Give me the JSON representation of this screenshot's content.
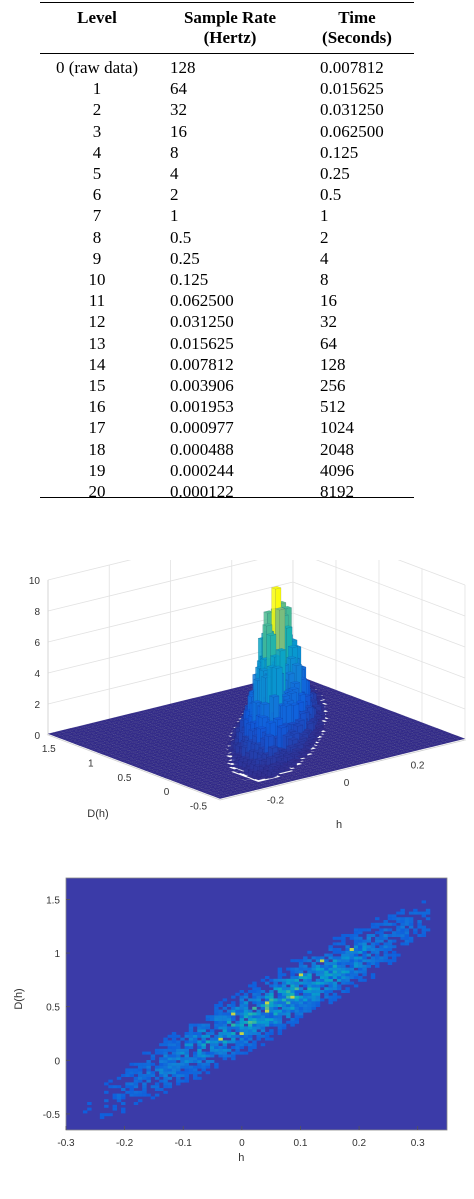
{
  "table": {
    "headers": {
      "level": "Level",
      "rate_line1": "Sample Rate",
      "rate_line2": "(Hertz)",
      "time_line1": "Time",
      "time_line2": "(Seconds)"
    },
    "rows": [
      {
        "level": "0 (raw data)",
        "rate": "128",
        "time": "0.007812"
      },
      {
        "level": "1",
        "rate": "64",
        "time": "0.015625"
      },
      {
        "level": "2",
        "rate": "32",
        "time": "0.031250"
      },
      {
        "level": "3",
        "rate": "16",
        "time": "0.062500"
      },
      {
        "level": "4",
        "rate": "8",
        "time": "0.125"
      },
      {
        "level": "5",
        "rate": "4",
        "time": "0.25"
      },
      {
        "level": "6",
        "rate": "2",
        "time": "0.5"
      },
      {
        "level": "7",
        "rate": "1",
        "time": "1"
      },
      {
        "level": "8",
        "rate": "0.5",
        "time": "2"
      },
      {
        "level": "9",
        "rate": "0.25",
        "time": "4"
      },
      {
        "level": "10",
        "rate": "0.125",
        "time": "8"
      },
      {
        "level": "11",
        "rate": "0.062500",
        "time": "16"
      },
      {
        "level": "12",
        "rate": "0.031250",
        "time": "32"
      },
      {
        "level": "13",
        "rate": "0.015625",
        "time": "64"
      },
      {
        "level": "14",
        "rate": "0.007812",
        "time": "128"
      },
      {
        "level": "15",
        "rate": "0.003906",
        "time": "256"
      },
      {
        "level": "16",
        "rate": "0.001953",
        "time": "512"
      },
      {
        "level": "17",
        "rate": "0.000977",
        "time": "1024"
      },
      {
        "level": "18",
        "rate": "0.000488",
        "time": "2048"
      },
      {
        "level": "19",
        "rate": "0.000244",
        "time": "4096"
      },
      {
        "level": "20",
        "rate": "0.000122",
        "time": "8192"
      }
    ]
  },
  "chart_data": [
    {
      "type": "bar3d",
      "xlabel": "h",
      "ylabel": "D(h)",
      "zticks": [
        "0",
        "2",
        "4",
        "6",
        "8",
        "10"
      ],
      "xticks": [
        "-0.2",
        "0",
        "0.2"
      ],
      "yticks": [
        "-0.5",
        "0",
        "0.5",
        "1",
        "1.5"
      ],
      "zlim": [
        0,
        10
      ],
      "grid": true,
      "colormap": "parula",
      "peak": {
        "h": 0.05,
        "D": 0.5,
        "count": 9
      }
    },
    {
      "type": "heatmap",
      "xlabel": "h",
      "ylabel": "D(h)",
      "xticks": [
        "-0.3",
        "-0.2",
        "-0.1",
        "0",
        "0.1",
        "0.2",
        "0.3"
      ],
      "yticks": [
        "-0.5",
        "0",
        "0.5",
        "1",
        "1.5"
      ],
      "xlim": [
        -0.3,
        0.35
      ],
      "ylim": [
        -0.65,
        1.7
      ],
      "background": "#3b3ba8",
      "colormap": "parula",
      "trend": {
        "slope": 3.1,
        "intercept": 0.35,
        "x_range": [
          -0.25,
          0.32
        ]
      }
    }
  ]
}
